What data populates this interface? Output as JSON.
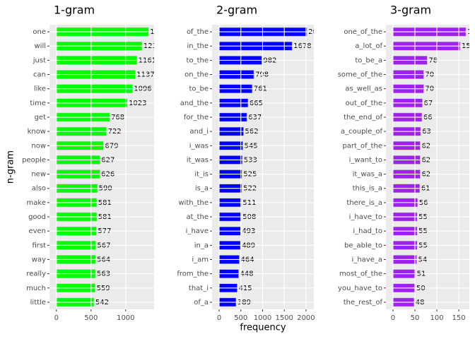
{
  "chart_data": [
    {
      "type": "bar",
      "orientation": "horizontal",
      "title": "1-gram",
      "ylabel": "n-gram",
      "color": "#00ff00",
      "grid": true,
      "categories": [
        "one",
        "will",
        "just",
        "can",
        "like",
        "time",
        "get",
        "know",
        "now",
        "people",
        "new",
        "also",
        "make",
        "good",
        "even",
        "first",
        "way",
        "really",
        "much",
        "little"
      ],
      "values": [
        1330,
        1235,
        1161,
        1137,
        1096,
        1023,
        768,
        722,
        679,
        627,
        626,
        590,
        581,
        581,
        577,
        567,
        564,
        563,
        559,
        542
      ],
      "xlim": [
        -100,
        1410
      ],
      "xticks": [
        0,
        500,
        1000
      ]
    },
    {
      "type": "bar",
      "orientation": "horizontal",
      "title": "2-gram",
      "xlabel": "frequency",
      "color": "#0000ff",
      "grid": true,
      "categories": [
        "of_the",
        "in_the",
        "to_the",
        "on_the",
        "to_be",
        "and_the",
        "for_the",
        "and_i",
        "i_was",
        "it_was",
        "it_is",
        "is_a",
        "with_the",
        "at_the",
        "i_have",
        "in_a",
        "i_am",
        "from_the",
        "that_i",
        "of_a"
      ],
      "values": [
        2020,
        1678,
        982,
        798,
        761,
        665,
        637,
        562,
        545,
        533,
        525,
        522,
        511,
        508,
        493,
        489,
        464,
        448,
        415,
        389
      ],
      "xlim": [
        -163,
        2180
      ],
      "xticks": [
        0,
        500,
        1000,
        1500,
        2000
      ]
    },
    {
      "type": "bar",
      "orientation": "horizontal",
      "title": "3-gram",
      "color": "#a020f0",
      "grid": true,
      "categories": [
        "one_of_the",
        "a_lot_of",
        "to_be_a",
        "some_of_the",
        "as_well_as",
        "out_of_the",
        "the_end_of",
        "a_couple_of",
        "part_of_the",
        "i_want_to",
        "it_was_a",
        "this_is_a",
        "there_is_a",
        "i_have_to",
        "i_had_to",
        "be_able_to",
        "i_have_a",
        "most_of_the",
        "you_have_to",
        "the_rest_of"
      ],
      "values": [
        166,
        153,
        78,
        70,
        70,
        67,
        66,
        63,
        62,
        62,
        62,
        61,
        56,
        55,
        55,
        55,
        54,
        51,
        50,
        48
      ],
      "xlim": [
        -16,
        174
      ],
      "xticks": [
        0,
        50,
        100,
        150
      ]
    }
  ]
}
